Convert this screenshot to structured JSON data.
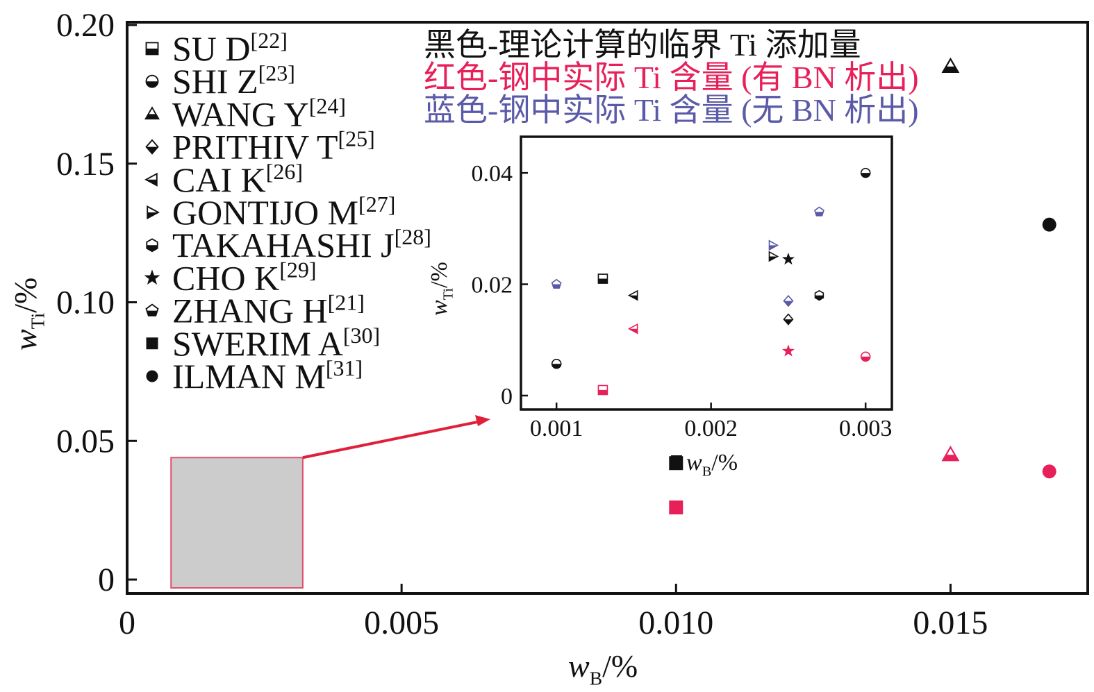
{
  "chart_data": [
    {
      "type": "scatter",
      "panel": "main",
      "xlabel": "w_B/%",
      "ylabel": "w_Ti/%",
      "xlim": [
        0,
        0.0175
      ],
      "ylim": [
        -0.005,
        0.201
      ],
      "xticks": [
        0,
        0.005,
        0.01,
        0.015
      ],
      "xtick_labels": [
        "0",
        "0.005",
        "0.010",
        "0.015"
      ],
      "yticks": [
        0,
        0.05,
        0.1,
        0.15,
        0.2
      ],
      "ytick_labels": [
        "0",
        "0.05",
        "0.10",
        "0.15",
        "0.20"
      ],
      "grid": false,
      "legend_position": "top-left",
      "legend": [
        {
          "marker": "square-half",
          "label": "SU D",
          "ref": "[22]"
        },
        {
          "marker": "circle-half",
          "label": "SHI Z",
          "ref": "[23]"
        },
        {
          "marker": "triangle-up-half",
          "label": "WANG Y",
          "ref": "[24]"
        },
        {
          "marker": "diamond-half",
          "label": "PRITHIV T",
          "ref": "[25]"
        },
        {
          "marker": "triangle-left-half",
          "label": "CAI K",
          "ref": "[26]"
        },
        {
          "marker": "triangle-right-half",
          "label": "GONTIJO M",
          "ref": "[27]"
        },
        {
          "marker": "hexagon-half",
          "label": "TAKAHASHI J",
          "ref": "[28]"
        },
        {
          "marker": "star",
          "label": "CHO K",
          "ref": "[29]"
        },
        {
          "marker": "pentagon-half",
          "label": "ZHANG H",
          "ref": "[21]"
        },
        {
          "marker": "square",
          "label": "SWERIM A",
          "ref": "[30]"
        },
        {
          "marker": "circle",
          "label": "ILMAN M",
          "ref": "[31]"
        }
      ],
      "notes": [
        {
          "text": "黑色-理论计算的临界 Ti 添加量",
          "color": "#111111"
        },
        {
          "text": "红色-钢中实际 Ti 含量 (有 BN 析出)",
          "color": "#e8205a"
        },
        {
          "text": "蓝色-钢中实际 Ti 含量 (无 BN 析出)",
          "color": "#5a5aa8"
        }
      ],
      "points": [
        {
          "marker": "triangle-up-half",
          "color": "black",
          "x": 0.015,
          "y": 0.185
        },
        {
          "marker": "circle",
          "color": "black",
          "x": 0.0168,
          "y": 0.128
        },
        {
          "marker": "triangle-up-half",
          "color": "red",
          "x": 0.015,
          "y": 0.045
        },
        {
          "marker": "circle",
          "color": "red",
          "x": 0.0168,
          "y": 0.039
        },
        {
          "marker": "square",
          "color": "red",
          "x": 0.01,
          "y": 0.026
        },
        {
          "marker": "square",
          "color": "black",
          "x": 0.01,
          "y": 0.042
        }
      ],
      "zoom_box": {
        "xlim": [
          0.0008,
          0.0032
        ],
        "ylim": [
          -0.003,
          0.044
        ]
      }
    },
    {
      "type": "scatter",
      "panel": "inset",
      "xlabel": "w_B/%",
      "ylabel": "w_Ti/%",
      "xlim": [
        0.00077,
        0.00317
      ],
      "ylim": [
        -0.0025,
        0.0465
      ],
      "xticks": [
        0.001,
        0.002,
        0.003
      ],
      "xtick_labels": [
        "0.001",
        "0.002",
        "0.003"
      ],
      "yticks": [
        0,
        0.02,
        0.04
      ],
      "ytick_labels": [
        "0",
        "0.02",
        "0.04"
      ],
      "points": [
        {
          "marker": "pentagon-half",
          "color": "blue",
          "x": 0.001,
          "y": 0.02
        },
        {
          "marker": "circle-half",
          "color": "black",
          "x": 0.001,
          "y": 0.0057
        },
        {
          "marker": "square-half",
          "color": "black",
          "x": 0.0013,
          "y": 0.021
        },
        {
          "marker": "square-half",
          "color": "red",
          "x": 0.0013,
          "y": 0.001
        },
        {
          "marker": "triangle-left-half",
          "color": "black",
          "x": 0.0015,
          "y": 0.018
        },
        {
          "marker": "triangle-left-half",
          "color": "red",
          "x": 0.0015,
          "y": 0.012
        },
        {
          "marker": "triangle-right-half",
          "color": "blue",
          "x": 0.0024,
          "y": 0.027
        },
        {
          "marker": "triangle-right-half",
          "color": "black",
          "x": 0.0024,
          "y": 0.025
        },
        {
          "marker": "star",
          "color": "black",
          "x": 0.0025,
          "y": 0.0245
        },
        {
          "marker": "diamond-half",
          "color": "blue",
          "x": 0.0025,
          "y": 0.017
        },
        {
          "marker": "diamond-half",
          "color": "black",
          "x": 0.0025,
          "y": 0.0137
        },
        {
          "marker": "star",
          "color": "red",
          "x": 0.0025,
          "y": 0.008
        },
        {
          "marker": "pentagon-half",
          "color": "blue",
          "x": 0.0027,
          "y": 0.033
        },
        {
          "marker": "hexagon-half",
          "color": "black",
          "x": 0.0027,
          "y": 0.018
        },
        {
          "marker": "circle-half",
          "color": "black",
          "x": 0.003,
          "y": 0.04
        },
        {
          "marker": "circle-half",
          "color": "red",
          "x": 0.003,
          "y": 0.007
        }
      ]
    }
  ],
  "colors": {
    "black": "#111111",
    "red": "#e8205a",
    "blue": "#5a5aa8",
    "axis": "#111111",
    "zoom_fill": "#cccccc",
    "zoom_stroke": "#e05070",
    "arrow": "#e0203a"
  }
}
